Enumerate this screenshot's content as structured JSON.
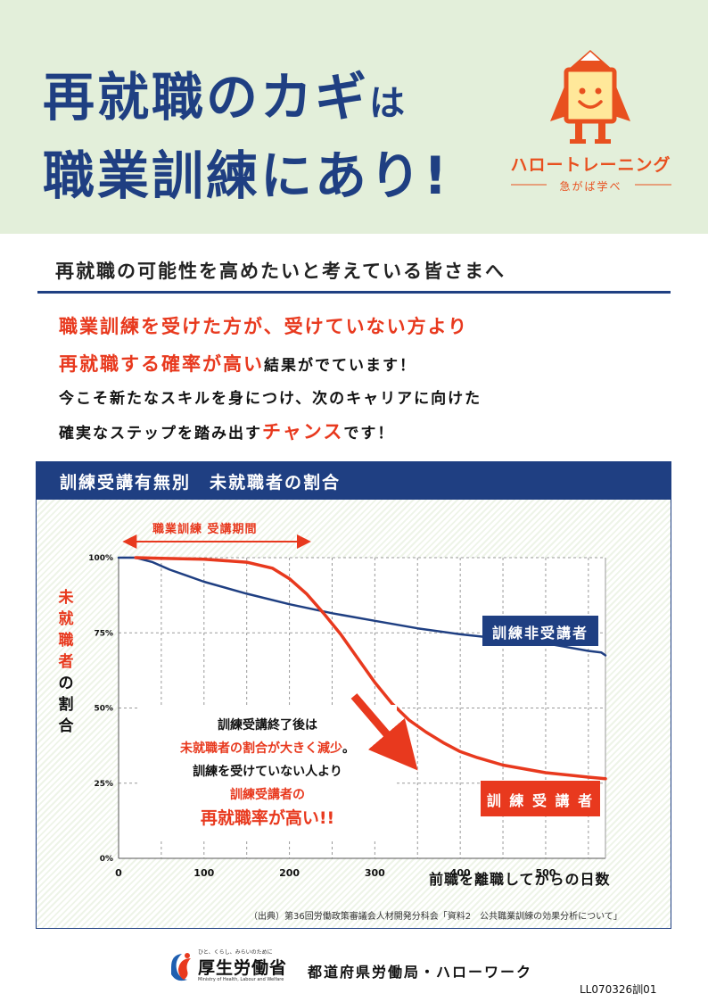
{
  "headline": {
    "line1_main": "再就職のカギ",
    "line1_tail": "は",
    "line2_main": "職業訓練にあり",
    "line2_tail": "!"
  },
  "logo": {
    "brand": "ハロートレーニング",
    "tagline": "急がば学べ",
    "colors": {
      "primary": "#e8501f",
      "body": "#ffe89a"
    }
  },
  "subtitle": "再就職の可能性を高めたいと考えている皆さまへ",
  "intro": {
    "line1": "職業訓練を受けた方が、受けていない方より",
    "line2_red": "再就職する確率が高い",
    "line2_black": "結果がでています！",
    "line3": "今こそ新たなスキルを身につけ、次のキャリアに向けた",
    "line4_black": "確実なステップを踏み出す",
    "line4_red": "チャンス",
    "line4_tail": "です！"
  },
  "chart_panel": {
    "title": "訓練受講有無別　未就職者の割合",
    "period_label": "職業訓練 受講期間",
    "ylabel_red": [
      "未",
      "就",
      "職",
      "者"
    ],
    "ylabel_black": [
      "の",
      "割",
      "合"
    ],
    "xlabel": "前職を離職してからの日数",
    "source": "（出典）第36回労働政策審議会人材開発分科会「資料2　公共職業訓練の効果分析について」",
    "callout": {
      "line1": "訓練受講終了後は",
      "line2_red": "未就職者の割合が大きく減少",
      "line2_tail": "。",
      "line3": "訓練を受けていない人より",
      "line4": "訓練受講者の",
      "line5": "再就職率が高い!!"
    },
    "series_labels": {
      "non_trainee": "訓練非受講者",
      "trainee": "訓 練 受 講 者"
    }
  },
  "chart_data": {
    "type": "line",
    "title": "訓練受講有無別　未就職者の割合",
    "xlabel": "前職を離職してからの日数",
    "ylabel": "未就職者の割合",
    "xlim": [
      0,
      570
    ],
    "ylim": [
      0,
      100
    ],
    "x_ticks": [
      "0",
      "100",
      "200",
      "300",
      "400",
      "500"
    ],
    "y_ticks": [
      "0%",
      "25%",
      "50%",
      "75%",
      "100%"
    ],
    "grid": true,
    "training_period": [
      15,
      215
    ],
    "series": [
      {
        "name": "訓練非受講者",
        "color": "#1f3f82",
        "x": [
          0,
          20,
          40,
          60,
          80,
          100,
          150,
          200,
          250,
          300,
          350,
          400,
          450,
          500,
          550,
          565,
          570
        ],
        "y": [
          100,
          100,
          98.5,
          96,
          94,
          92,
          88,
          84.5,
          81.5,
          79,
          76.5,
          74.5,
          73,
          71.5,
          69,
          68.5,
          67.5
        ]
      },
      {
        "name": "訓練受講者",
        "color": "#e8391e",
        "x": [
          20,
          50,
          100,
          150,
          180,
          200,
          220,
          240,
          260,
          280,
          300,
          320,
          340,
          360,
          380,
          400,
          420,
          450,
          500,
          550,
          570
        ],
        "y": [
          100,
          99.8,
          99.5,
          98.5,
          96.5,
          93,
          88,
          81.5,
          74.5,
          66.5,
          58.5,
          51.5,
          46,
          42,
          38.5,
          35.5,
          33.5,
          31,
          28.5,
          27,
          26.5
        ]
      }
    ]
  },
  "footer": {
    "ministry_tagline": "ひと、くらし、みらいのために",
    "ministry_name": "厚生労働省",
    "ministry_en": "Ministry of Health, Labour and Welfare",
    "offices": "都道府県労働局・ハローワーク",
    "code": "LL070326訓01"
  }
}
